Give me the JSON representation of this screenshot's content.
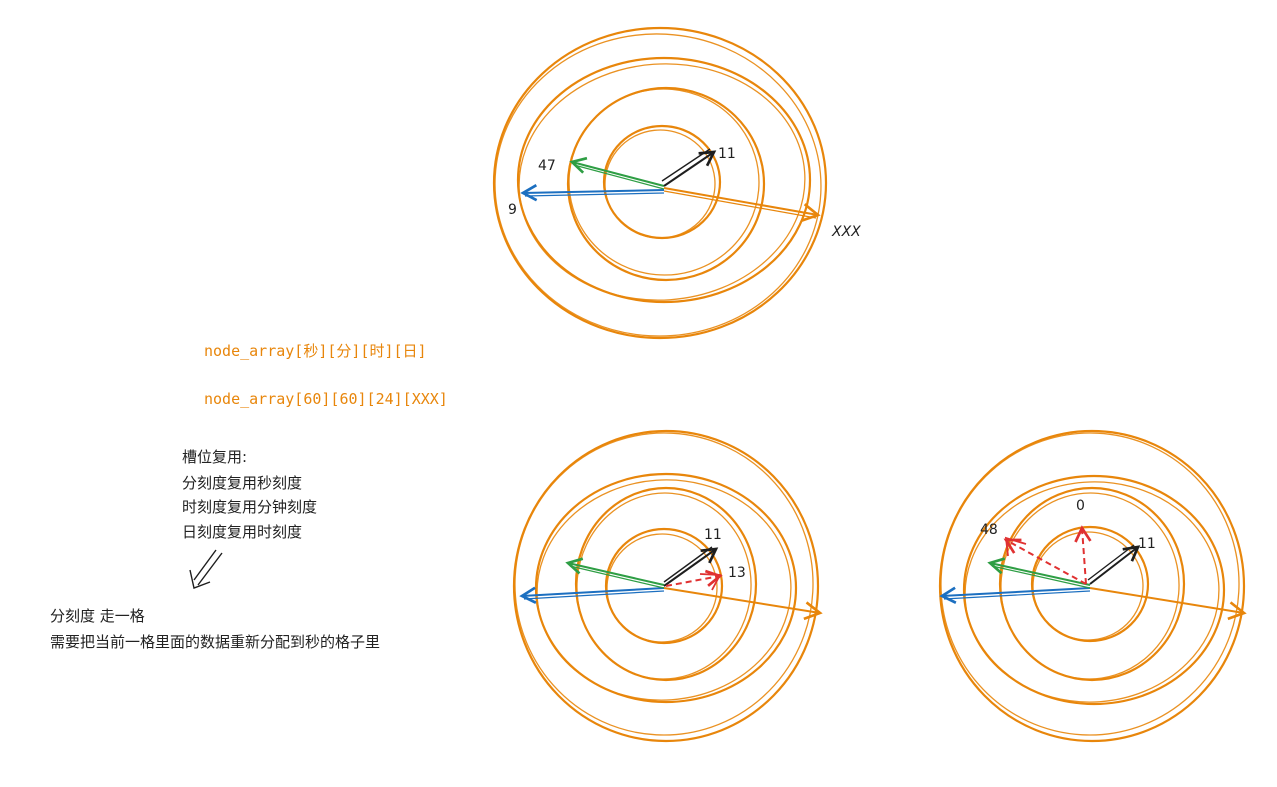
{
  "colors": {
    "ring": "#e8860b",
    "green": "#2e9e44",
    "blue": "#1c6fc0",
    "black": "#1e1e1e",
    "red": "#e03131",
    "text_orange": "#e8860b",
    "text_dark": "#222222"
  },
  "notes": {
    "array_line_1": "node_array[秒][分][时][日]",
    "array_line_2": "node_array[60][60][24][XXX]",
    "reuse_title": "槽位复用:",
    "reuse_lines": [
      "分刻度复用秒刻度",
      "时刻度复用分钟刻度",
      "日刻度复用时刻度"
    ],
    "step_line_1": "分刻度 走一格",
    "step_line_2": "需要把当前一格里面的数据重新分配到秒的格子里"
  },
  "wheels": {
    "top": {
      "label_inner": "11",
      "label_minute": "47",
      "label_hour": "9",
      "label_day": "XXX"
    },
    "bottom_left": {
      "label_inner": "11",
      "label_red": "13"
    },
    "bottom_right": {
      "label_inner": "11",
      "label_zero": "0",
      "label_red": "48"
    }
  }
}
